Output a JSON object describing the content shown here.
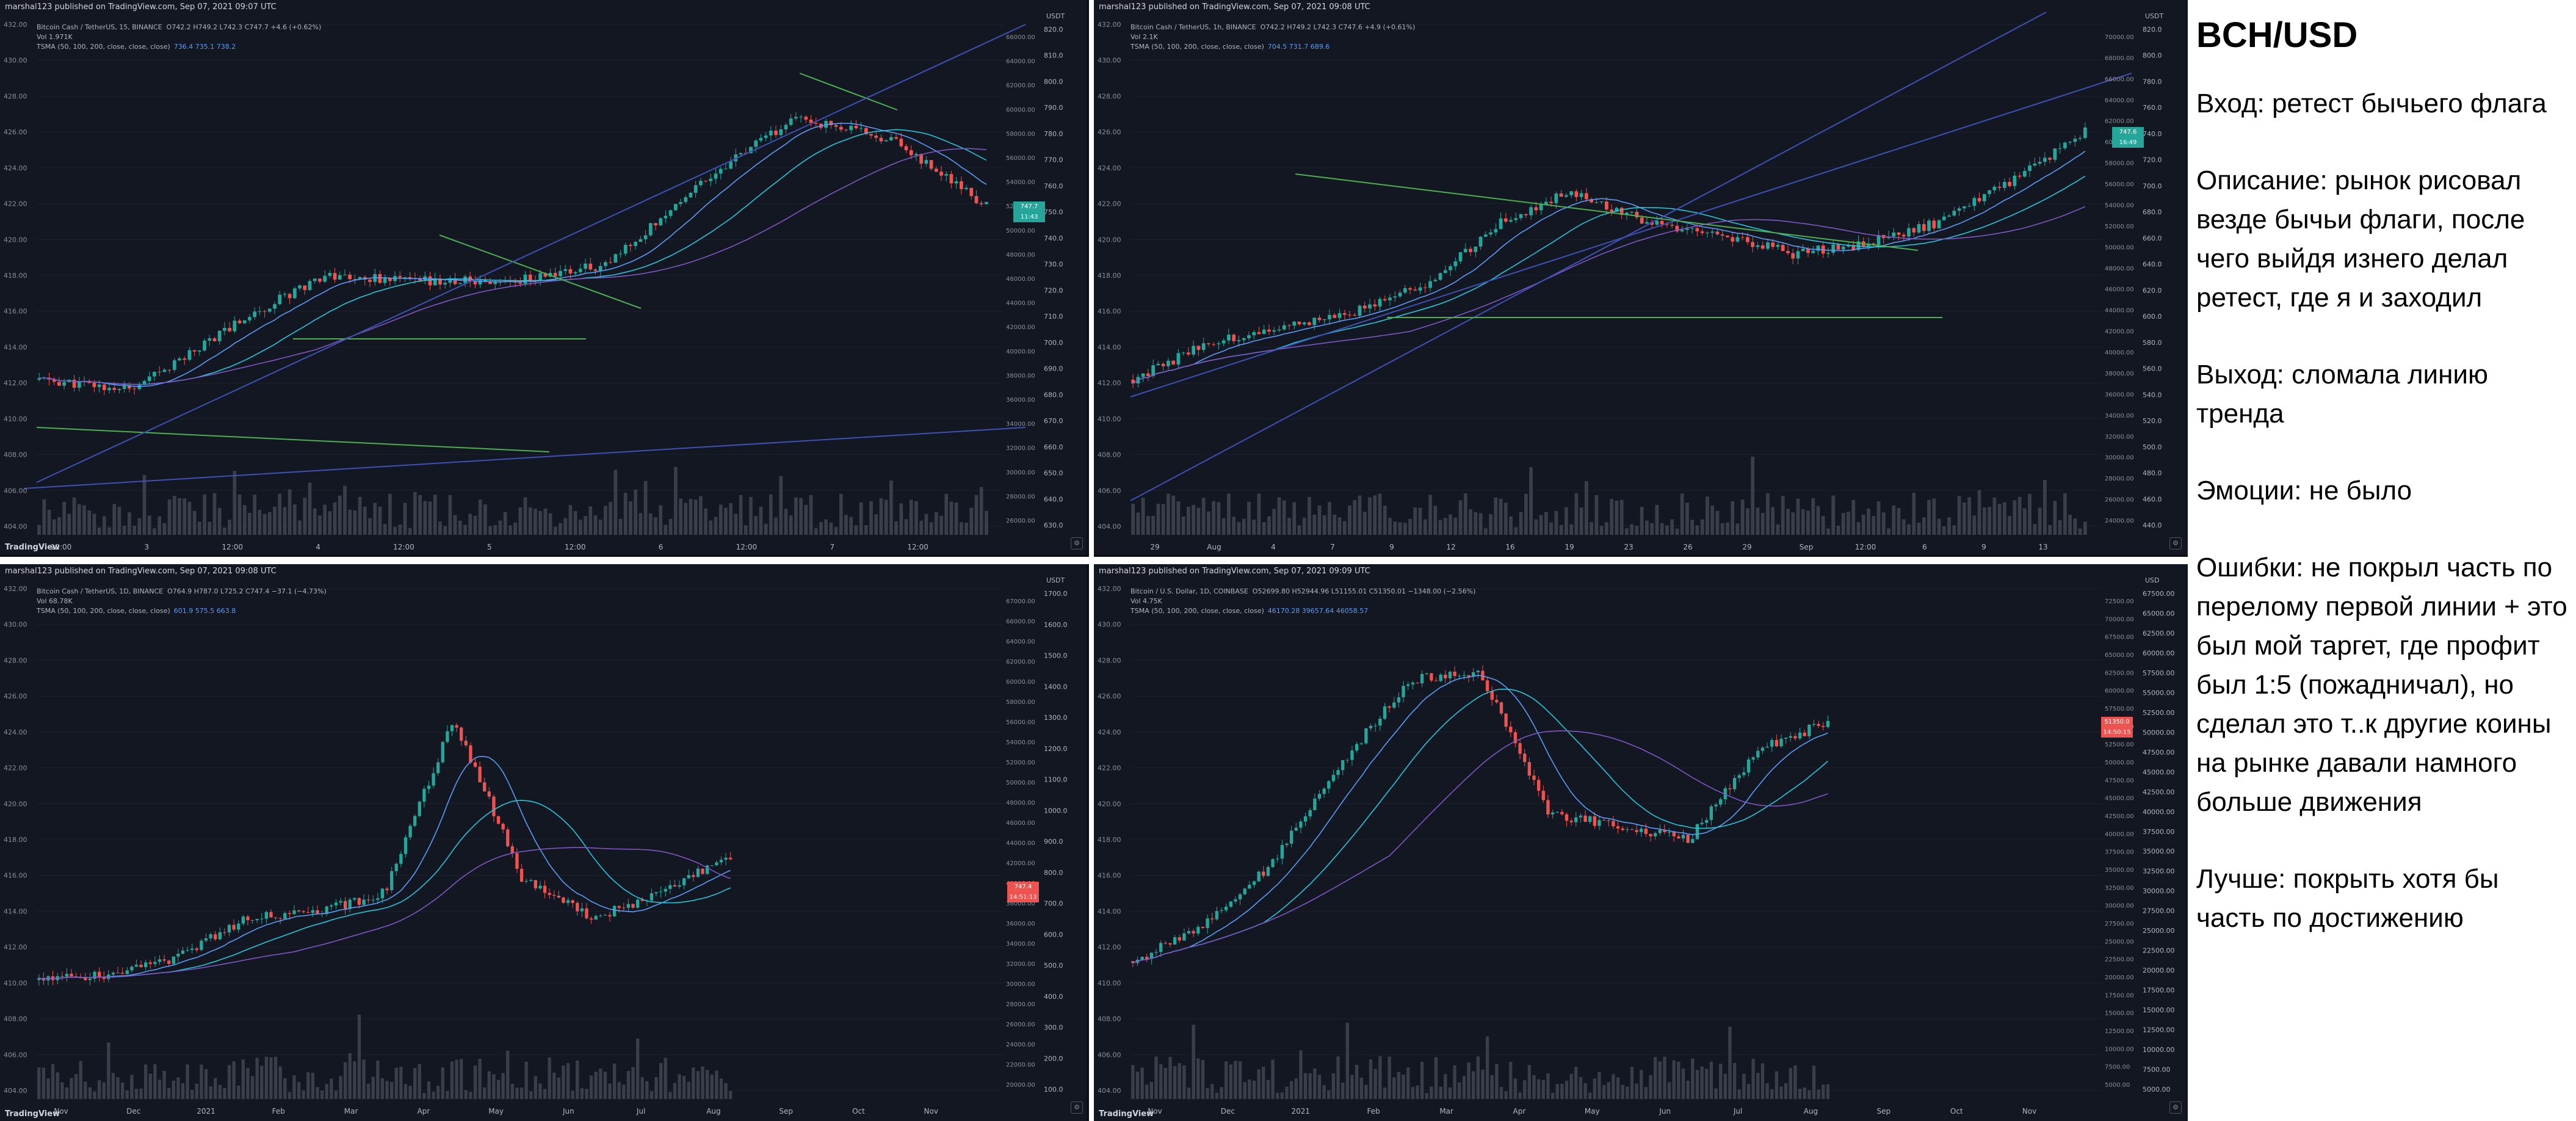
{
  "panels": [
    {
      "id": "tl",
      "publisher": "marshal123 published on TradingView.com, Sep 07, 2021 09:07 UTC",
      "symbol": "Bitcoin Cash / TetherUS, 15, BINANCE",
      "symbol_ohlc": "O742.2  H749.2  L742.3  C747.7  +4.6 (+0.62%)",
      "volume": "Vol  1.971K",
      "ma_label": "TSMA (50, 100, 200, close, close, close)",
      "ma_values": "736.4   735.1   738.2",
      "currency": "USDT",
      "last_price": "747.7",
      "last_price_sub": "11:43",
      "left_ticks": [
        "432.00",
        "430.00",
        "428.00",
        "426.00",
        "424.00",
        "422.00",
        "420.00",
        "418.00",
        "416.00",
        "414.00",
        "412.00",
        "410.00",
        "408.00",
        "406.00",
        "404.00"
      ],
      "right_ticks": [
        "820.0",
        "810.0",
        "800.0",
        "790.0",
        "780.0",
        "770.0",
        "760.0",
        "750.0",
        "740.0",
        "730.0",
        "720.0",
        "710.0",
        "700.0",
        "690.0",
        "680.0",
        "670.0",
        "660.0",
        "650.0",
        "640.0",
        "630.0"
      ],
      "right_ticks2": [
        "66000.00",
        "64000.00",
        "62000.00",
        "60000.00",
        "58000.00",
        "56000.00",
        "54000.00",
        "52000.00",
        "50000.00",
        "48000.00",
        "46000.00",
        "44000.00",
        "42000.00",
        "40000.00",
        "38000.00",
        "36000.00",
        "34000.00",
        "32000.00",
        "30000.00",
        "28000.00",
        "26000.00"
      ],
      "x_ticks": [
        "12:00",
        "3",
        "12:00",
        "4",
        "12:00",
        "5",
        "12:00",
        "6",
        "12:00",
        "7",
        "12:00"
      ],
      "tv": "TradingView"
    },
    {
      "id": "tr",
      "publisher": "marshal123 published on TradingView.com, Sep 07, 2021 09:08 UTC",
      "symbol": "Bitcoin Cash / TetherUS, 1h, BINANCE",
      "symbol_ohlc": "O742.2  H749.2  L742.3  C747.6  +4.9 (+0.61%)",
      "volume": "Vol  2.1K",
      "ma_label": "TSMA (50, 100, 200, close, close, close)",
      "ma_values": "704.5   731.7   689.6",
      "currency": "USDT",
      "last_price": "747.6",
      "last_price_sub": "16:49",
      "left_ticks": [
        "432.00",
        "430.00",
        "428.00",
        "426.00",
        "424.00",
        "422.00",
        "420.00",
        "418.00",
        "416.00",
        "414.00",
        "412.00",
        "410.00",
        "408.00",
        "406.00",
        "404.00"
      ],
      "right_ticks": [
        "820.0",
        "800.0",
        "780.0",
        "760.0",
        "740.0",
        "720.0",
        "700.0",
        "680.0",
        "660.0",
        "640.0",
        "620.0",
        "600.0",
        "580.0",
        "560.0",
        "540.0",
        "520.0",
        "500.0",
        "480.0",
        "460.0",
        "440.0"
      ],
      "right_ticks2": [
        "70000.00",
        "68000.00",
        "66000.00",
        "64000.00",
        "62000.00",
        "60000.00",
        "58000.00",
        "56000.00",
        "54000.00",
        "52000.00",
        "50000.00",
        "48000.00",
        "46000.00",
        "44000.00",
        "42000.00",
        "40000.00",
        "38000.00",
        "36000.00",
        "34000.00",
        "32000.00",
        "30000.00",
        "28000.00",
        "26000.00",
        "24000.00"
      ],
      "x_ticks": [
        "29",
        "Aug",
        "4",
        "7",
        "9",
        "12",
        "16",
        "19",
        "23",
        "26",
        "29",
        "Sep",
        "12:00",
        "6",
        "9",
        "13"
      ],
      "tv": "TradingView"
    },
    {
      "id": "bl",
      "publisher": "marshal123 published on TradingView.com, Sep 07, 2021 09:08 UTC",
      "symbol": "Bitcoin Cash / TetherUS, 1D, BINANCE",
      "symbol_ohlc": "O764.9  H787.0  L725.2  C747.4  −37.1 (−4.73%)",
      "volume": "Vol  68.78K",
      "ma_label": "TSMA (50, 100, 200, close, close, close)",
      "ma_values": "601.9   575.5   663.8",
      "currency": "USDT",
      "last_price": "747.4",
      "last_price_sub": "14:51:13",
      "left_ticks": [
        "432.00",
        "430.00",
        "428.00",
        "426.00",
        "424.00",
        "422.00",
        "420.00",
        "418.00",
        "416.00",
        "414.00",
        "412.00",
        "410.00",
        "408.00",
        "406.00",
        "404.00"
      ],
      "right_ticks": [
        "1700.0",
        "1600.0",
        "1500.0",
        "1400.0",
        "1300.0",
        "1200.0",
        "1100.0",
        "1000.0",
        "900.0",
        "800.0",
        "700.0",
        "600.0",
        "500.0",
        "400.0",
        "300.0",
        "200.0",
        "100.0"
      ],
      "right_ticks2": [
        "67000.00",
        "66000.00",
        "64000.00",
        "62000.00",
        "60000.00",
        "58000.00",
        "56000.00",
        "54000.00",
        "52000.00",
        "50000.00",
        "48000.00",
        "46000.00",
        "44000.00",
        "42000.00",
        "40000.00",
        "38000.00",
        "36000.00",
        "34000.00",
        "32000.00",
        "30000.00",
        "28000.00",
        "26000.00",
        "24000.00",
        "22000.00",
        "20000.00"
      ],
      "x_ticks": [
        "Nov",
        "Dec",
        "2021",
        "Feb",
        "Mar",
        "Apr",
        "May",
        "Jun",
        "Jul",
        "Aug",
        "Sep",
        "Oct",
        "Nov"
      ],
      "tv": "TradingView"
    },
    {
      "id": "br",
      "publisher": "marshal123 published on TradingView.com, Sep 07, 2021 09:09 UTC",
      "symbol": "Bitcoin / U.S. Dollar, 1D, COINBASE",
      "symbol_ohlc": "O52699.80  H52944.96  L51155.01  C51350.01  −1348.00 (−2.56%)",
      "volume": "Vol  4.75K",
      "ma_label": "TSMA (50, 100, 200, close, close, close)",
      "ma_values": "46170.28   39657.64   46058.57",
      "currency": "USD",
      "last_price": "51350.0",
      "last_price_sub": "14:50:15",
      "left_ticks": [
        "432.00",
        "430.00",
        "428.00",
        "426.00",
        "424.00",
        "422.00",
        "420.00",
        "418.00",
        "416.00",
        "414.00",
        "412.00",
        "410.00",
        "408.00",
        "406.00",
        "404.00"
      ],
      "right_ticks": [
        "67500.00",
        "65000.00",
        "62500.00",
        "60000.00",
        "57500.00",
        "55000.00",
        "52500.00",
        "50000.00",
        "47500.00",
        "45000.00",
        "42500.00",
        "40000.00",
        "37500.00",
        "35000.00",
        "32500.00",
        "30000.00",
        "27500.00",
        "25000.00",
        "22500.00",
        "20000.00",
        "17500.00",
        "15000.00",
        "12500.00",
        "10000.00",
        "7500.00",
        "5000.00"
      ],
      "right_ticks2": [
        "72500.00",
        "70000.00",
        "67500.00",
        "65000.00",
        "62500.00",
        "60000.00",
        "57500.00",
        "55000.00",
        "52500.00",
        "50000.00",
        "47500.00",
        "45000.00",
        "42500.00",
        "40000.00",
        "37500.00",
        "35000.00",
        "32500.00",
        "30000.00",
        "27500.00",
        "25000.00",
        "22500.00",
        "20000.00",
        "17500.00",
        "15000.00",
        "12500.00",
        "10000.00",
        "7500.00",
        "5000.00"
      ],
      "x_ticks": [
        "Nov",
        "Dec",
        "2021",
        "Feb",
        "Mar",
        "Apr",
        "May",
        "Jun",
        "Jul",
        "Aug",
        "Sep",
        "Oct",
        "Nov"
      ],
      "tv": "TradingView"
    }
  ],
  "notes": {
    "title": "BCH/USD",
    "entry": "Вход: ретест бычьего флага",
    "description": "Описание: рынок рисовал везде бычьи флаги, после чего выйдя изнего делал ретест, где я и заходил",
    "exit": "Выход: сломала линию тренда",
    "emotions": "Эмоции: не было",
    "mistakes": "Ошибки: не покрыл часть по перелому первой линии + это был мой таргет, где профит был 1:5 (пожадничал), но сделал это т..к другие коины на рынке давали намного больше движения",
    "better": "Лучше: покрыть хотя бы часть по достижению"
  },
  "chart_data": [
    {
      "type": "line",
      "symbol": "Bitcoin Cash / TetherUS, 15, BINANCE",
      "x": [
        "12:00",
        "3",
        "12:00",
        "4",
        "12:00",
        "5",
        "12:00",
        "6",
        "12:00",
        "7",
        "12:00"
      ],
      "series": [
        {
          "name": "Close",
          "values": [
            665,
            660,
            690,
            715,
            712,
            712,
            720,
            760,
            790,
            780,
            747.7
          ]
        }
      ],
      "ylim": [
        630,
        820
      ]
    },
    {
      "type": "line",
      "symbol": "Bitcoin Cash / TetherUS, 1h, BINANCE",
      "x": [
        "29",
        "Aug",
        "4",
        "7",
        "9",
        "12",
        "16",
        "19",
        "23",
        "26",
        "29",
        "Sep",
        "12:00",
        "6"
      ],
      "series": [
        {
          "name": "Close",
          "values": [
            510,
            545,
            560,
            575,
            600,
            660,
            690,
            660,
            650,
            630,
            640,
            660,
            700,
            747.6
          ]
        }
      ],
      "ylim": [
        440,
        820
      ]
    },
    {
      "type": "line",
      "symbol": "Bitcoin Cash / TetherUS, 1D, BINANCE",
      "x": [
        "Nov",
        "Dec",
        "2021",
        "Feb",
        "Mar",
        "Apr",
        "May",
        "Jun",
        "Jul",
        "Aug",
        "Sep"
      ],
      "series": [
        {
          "name": "Close",
          "values": [
            250,
            270,
            340,
            500,
            520,
            600,
            1300,
            650,
            500,
            600,
            747.4
          ]
        }
      ],
      "ylim": [
        100,
        1700
      ]
    },
    {
      "type": "line",
      "symbol": "Bitcoin / U.S. Dollar, 1D, COINBASE",
      "x": [
        "Nov",
        "Dec",
        "2021",
        "Feb",
        "Mar",
        "Apr",
        "May",
        "Jun",
        "Jul",
        "Aug",
        "Sep"
      ],
      "series": [
        {
          "name": "Close",
          "values": [
            13800,
            19000,
            29000,
            45000,
            58000,
            59000,
            37000,
            35000,
            33000,
            47000,
            51350
          ]
        }
      ],
      "ylim": [
        5000,
        67500
      ]
    }
  ]
}
